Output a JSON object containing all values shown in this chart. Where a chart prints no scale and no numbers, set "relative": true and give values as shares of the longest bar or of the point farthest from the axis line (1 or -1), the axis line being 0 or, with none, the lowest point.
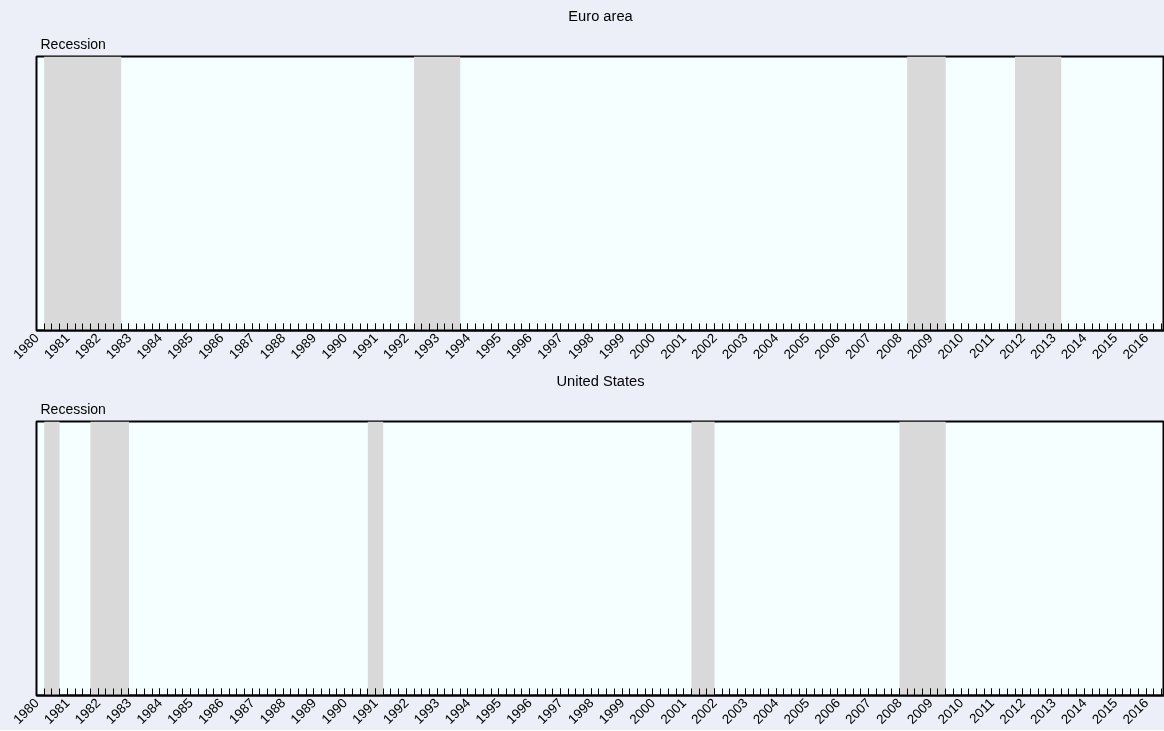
{
  "chart_data": [
    {
      "type": "area",
      "relative": true,
      "title": "Euro area",
      "annotations": [
        "Recession"
      ],
      "xlim": [
        1980,
        2016.6
      ],
      "xticks": [
        1980,
        1981,
        1982,
        1983,
        1984,
        1985,
        1986,
        1987,
        1988,
        1989,
        1990,
        1991,
        1992,
        1993,
        1994,
        1995,
        1996,
        1997,
        1998,
        1999,
        2000,
        2001,
        2002,
        2003,
        2004,
        2005,
        2006,
        2007,
        2008,
        2009,
        2010,
        2011,
        2012,
        2013,
        2014,
        2015,
        2016
      ],
      "series": [
        {
          "color": "#d9d9d9",
          "x": [
            1980,
            1980.25,
            1980.25,
            1982.75,
            1982.75,
            1992.25,
            1992.25,
            1993.75,
            1993.75,
            2008.25,
            2008.25,
            2009.5,
            2009.5,
            2011.75,
            2011.75,
            2013.25,
            2013.25,
            2016.6
          ],
          "values": [
            0,
            0,
            1,
            1,
            0,
            0,
            1,
            1,
            0,
            0,
            1,
            1,
            0,
            0,
            1,
            1,
            0,
            0
          ]
        }
      ]
    },
    {
      "type": "area",
      "relative": true,
      "title": "United States",
      "annotations": [
        "Recession"
      ],
      "xlim": [
        1980,
        2016.6
      ],
      "xticks": [
        1980,
        1981,
        1982,
        1983,
        1984,
        1985,
        1986,
        1987,
        1988,
        1989,
        1990,
        1991,
        1992,
        1993,
        1994,
        1995,
        1996,
        1997,
        1998,
        1999,
        2000,
        2001,
        2002,
        2003,
        2004,
        2005,
        2006,
        2007,
        2008,
        2009,
        2010,
        2011,
        2012,
        2013,
        2014,
        2015,
        2016
      ],
      "series": [
        {
          "color": "#d9d9d9",
          "x": [
            1980,
            1980.25,
            1980.25,
            1980.75,
            1980.75,
            1981.75,
            1981.75,
            1983.0,
            1983.0,
            1990.75,
            1990.75,
            1991.25,
            1991.25,
            2001.25,
            2001.25,
            2002.0,
            2002.0,
            2008.0,
            2008.0,
            2009.5,
            2009.5,
            2016.6
          ],
          "values": [
            0,
            0,
            1,
            1,
            0,
            0,
            1,
            1,
            0,
            0,
            1,
            1,
            0,
            0,
            1,
            1,
            0,
            0,
            1,
            1,
            0,
            0
          ]
        }
      ]
    }
  ]
}
